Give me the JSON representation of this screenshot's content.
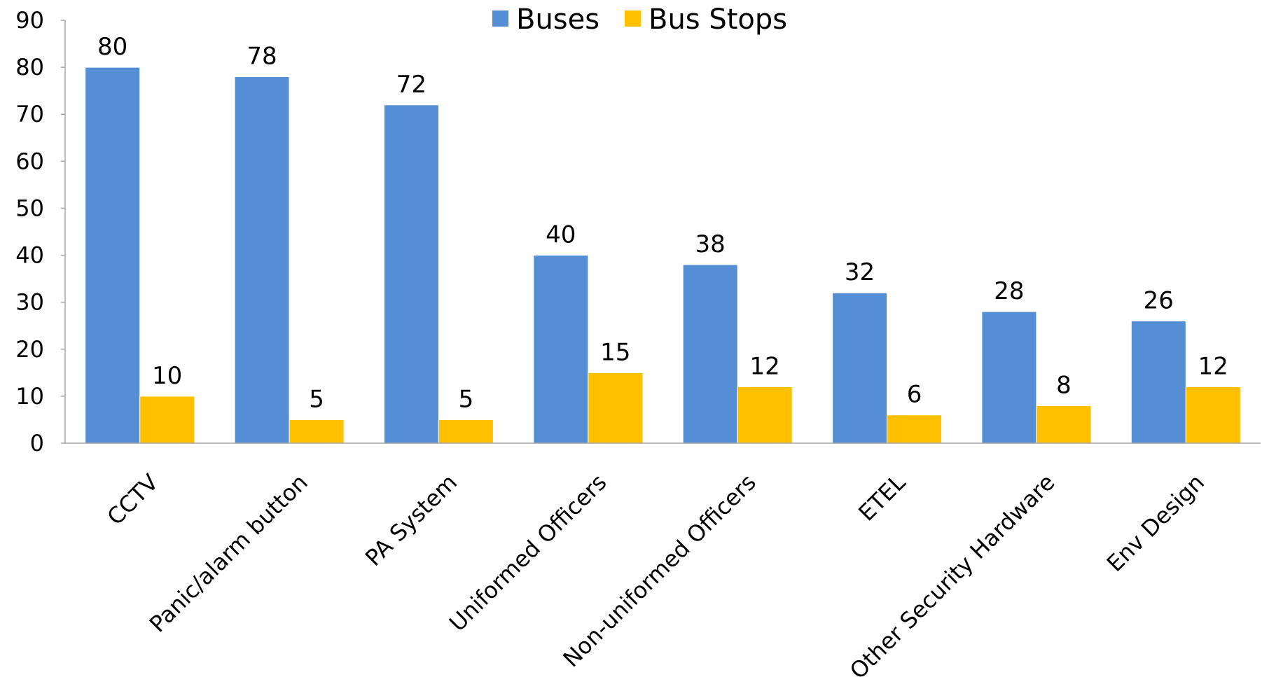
{
  "chart_data": {
    "type": "bar",
    "title": "",
    "xlabel": "",
    "ylabel": "",
    "categories": [
      "CCTV",
      "Panic/alarm button",
      "PA System",
      "Uniformed Officers",
      "Non-uniformed Officers",
      "ETEL",
      "Other Security Hardware",
      "Env Design"
    ],
    "series": [
      {
        "name": "Buses",
        "values": [
          80,
          78,
          72,
          40,
          38,
          32,
          28,
          26
        ],
        "color": "#558ed5"
      },
      {
        "name": "Bus Stops",
        "values": [
          10,
          5,
          5,
          15,
          12,
          6,
          8,
          12
        ],
        "color": "#ffc000"
      }
    ],
    "ylim": [
      0,
      90
    ],
    "yticks": [
      0,
      10,
      20,
      30,
      40,
      50,
      60,
      70,
      80,
      90
    ],
    "grid": false,
    "legend_position": "top-center",
    "data_labels": true,
    "axis_color": "#a6a6a6"
  }
}
